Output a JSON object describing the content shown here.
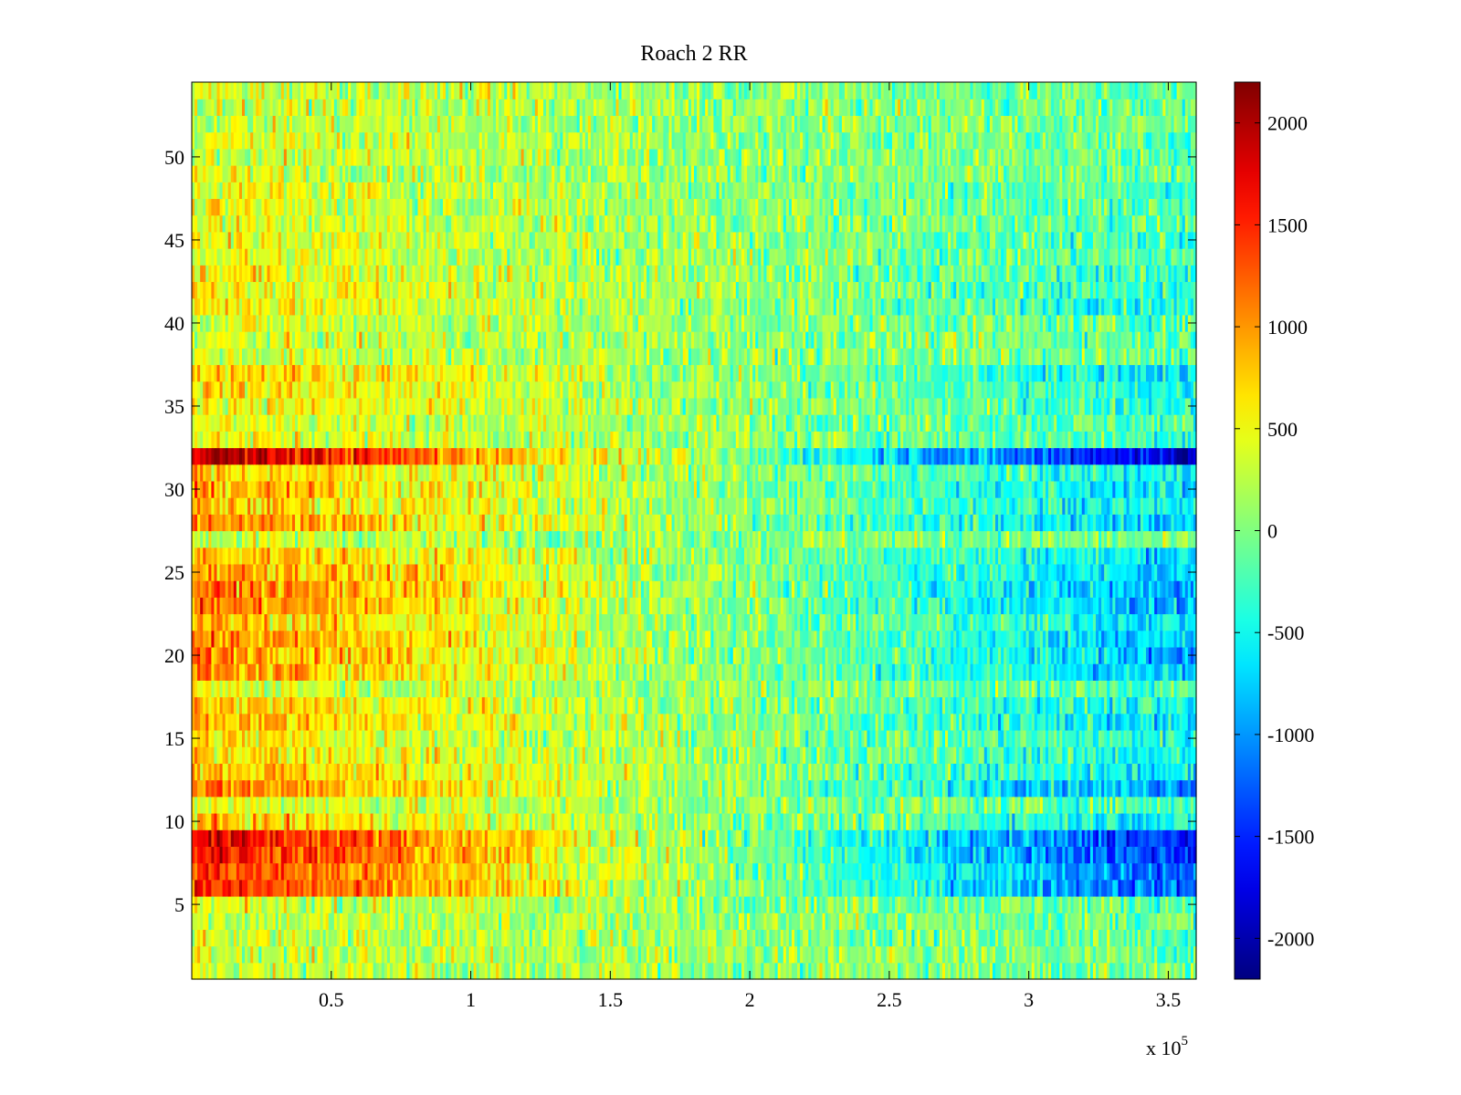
{
  "chart_data": {
    "type": "heatmap",
    "title": "Roach 2 RR",
    "xlabel": "",
    "ylabel": "",
    "x_multiplier_label": "x 10",
    "x_multiplier_exponent": "5",
    "xlim": [
      0,
      3.6
    ],
    "ylim": [
      0.5,
      54.5
    ],
    "x_ticks": [
      0.5,
      1,
      1.5,
      2,
      2.5,
      3,
      3.5
    ],
    "x_tick_labels": [
      "0.5",
      "1",
      "1.5",
      "2",
      "2.5",
      "3",
      "3.5"
    ],
    "y_ticks": [
      5,
      10,
      15,
      20,
      25,
      30,
      35,
      40,
      45,
      50
    ],
    "y_tick_labels": [
      "5",
      "10",
      "15",
      "20",
      "25",
      "30",
      "35",
      "40",
      "45",
      "50"
    ],
    "rows": 54,
    "colormap": "jet",
    "colorbar": {
      "range": [
        -2200,
        2200
      ],
      "ticks": [
        2000,
        1500,
        1000,
        500,
        0,
        -500,
        -1000,
        -1500,
        -2000
      ],
      "tick_labels": [
        "2000",
        "1500",
        "1000",
        "500",
        "0",
        "-500",
        "-1000",
        "-1500",
        "-2000"
      ],
      "placement": "right"
    },
    "row_trend_amplitude": [
      200,
      250,
      250,
      200,
      250,
      1400,
      1350,
      1600,
      1700,
      700,
      350,
      1100,
      800,
      650,
      550,
      850,
      700,
      350,
      950,
      1050,
      950,
      750,
      1050,
      1100,
      950,
      800,
      200,
      950,
      700,
      850,
      700,
      2000,
      400,
      350,
      500,
      600,
      750,
      250,
      250,
      300,
      550,
      550,
      500,
      350,
      450,
      300,
      350,
      400,
      300,
      250,
      300,
      200,
      250,
      300
    ],
    "noise_amplitude": 380,
    "grid": false
  }
}
